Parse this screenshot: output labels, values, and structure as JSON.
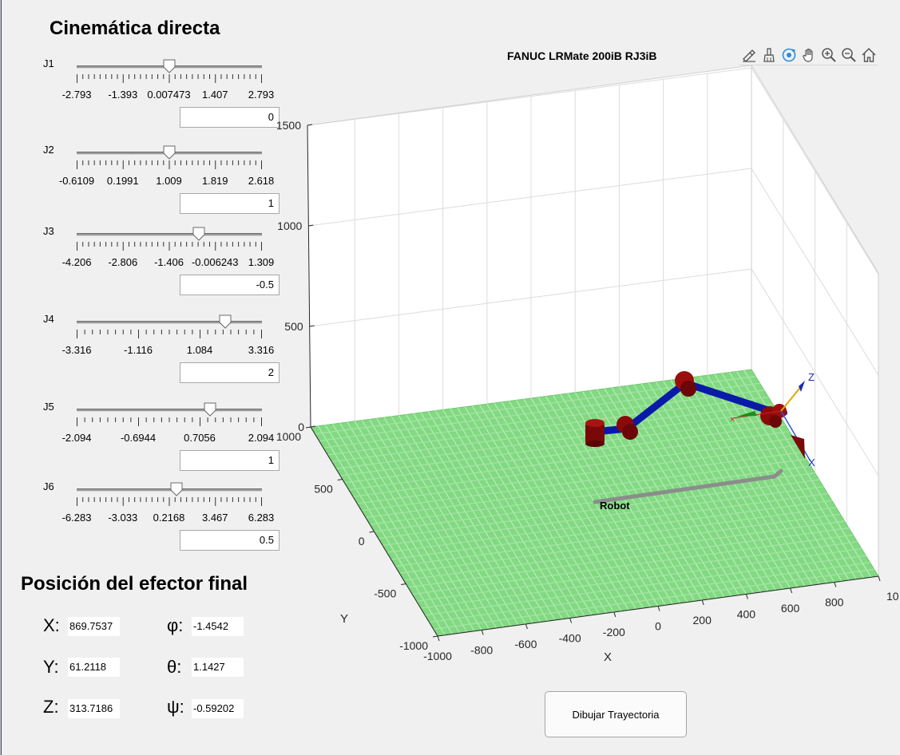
{
  "panel": {
    "title": "Cinemática directa"
  },
  "joints": [
    {
      "label": "J1",
      "value": "0",
      "fraction": 0.5,
      "ticks": [
        "-2.793",
        "-1.393",
        "0.007473",
        "1.407",
        "2.793"
      ]
    },
    {
      "label": "J2",
      "value": "1",
      "fraction": 0.5,
      "ticks": [
        "-0.6109",
        "0.1991",
        "1.009",
        "1.819",
        "2.618"
      ]
    },
    {
      "label": "J3",
      "value": "-0.5",
      "fraction": 0.66,
      "ticks": [
        "-4.206",
        "-2.806",
        "-1.406",
        "-0.006243",
        "1.309"
      ]
    },
    {
      "label": "J4",
      "value": "2",
      "fraction": 0.8,
      "ticks": [
        "-3.316",
        "-1.116",
        "1.084",
        "3.316"
      ]
    },
    {
      "label": "J5",
      "value": "1",
      "fraction": 0.72,
      "ticks": [
        "-2.094",
        "-0.6944",
        "0.7056",
        "2.094"
      ]
    },
    {
      "label": "J6",
      "value": "0.5",
      "fraction": 0.54,
      "ticks": [
        "-6.283",
        "-3.033",
        "0.2168",
        "3.467",
        "6.283"
      ]
    }
  ],
  "position": {
    "title": "Posición del efector final",
    "x_label": "X:",
    "x_value": "869.7537",
    "y_label": "Y:",
    "y_value": "61.2118",
    "z_label": "Z:",
    "z_value": "313.7186",
    "phi_label": "φ:",
    "phi_value": "-1.4542",
    "theta_label": "θ:",
    "theta_value": "1.1427",
    "psi_label": "ψ:",
    "psi_value": "-0.59202"
  },
  "plot": {
    "title": "FANUC LRMate 200iB RJ3iB",
    "z_ticks": [
      "1500",
      "1000",
      "500",
      "0"
    ],
    "y_ticks": [
      "1000",
      "500",
      "0",
      "-500",
      "-1000"
    ],
    "x_ticks": [
      "-1000",
      "-800",
      "-600",
      "-400",
      "-200",
      "0",
      "200",
      "400",
      "600",
      "800",
      "10"
    ],
    "x_label": "X",
    "y_label": "Y",
    "robot_text": "Robot",
    "frame_labels": {
      "z": "Z",
      "x": "X"
    },
    "colors": {
      "floor": "#7fd67f",
      "link": "#0a1aa8",
      "joint": "#8c0a0a"
    }
  },
  "toolbar": [
    "brush-icon",
    "clean-icon",
    "rotate-3d-icon",
    "pan-hand-icon",
    "zoom-in-icon",
    "zoom-out-icon",
    "home-icon"
  ],
  "buttons": {
    "draw_label": "Dibujar Trayectoria"
  }
}
